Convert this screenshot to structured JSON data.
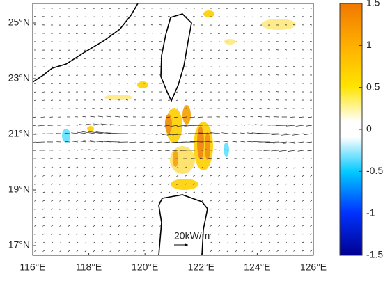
{
  "map": {
    "xlim": [
      116,
      126
    ],
    "ylim": [
      16.65,
      25.7
    ],
    "xticks": [
      {
        "value": 116,
        "label": "116°E"
      },
      {
        "value": 118,
        "label": "118°E"
      },
      {
        "value": 120,
        "label": "120°E"
      },
      {
        "value": 122,
        "label": "122°E"
      },
      {
        "value": 124,
        "label": "124°E"
      },
      {
        "value": 126,
        "label": "126°E"
      }
    ],
    "yticks": [
      {
        "value": 17,
        "label": "17°N"
      },
      {
        "value": 19,
        "label": "19°N"
      },
      {
        "value": 21,
        "label": "21°N"
      },
      {
        "value": 23,
        "label": "23°N"
      },
      {
        "value": 25,
        "label": "25°N"
      }
    ],
    "annotation": "20kW/m",
    "colorbar": {
      "lim": [
        -1.5,
        1.5
      ],
      "ticks": [
        1.5,
        1,
        0.5,
        0,
        -0.5,
        -1,
        -1.5
      ]
    }
  }
}
